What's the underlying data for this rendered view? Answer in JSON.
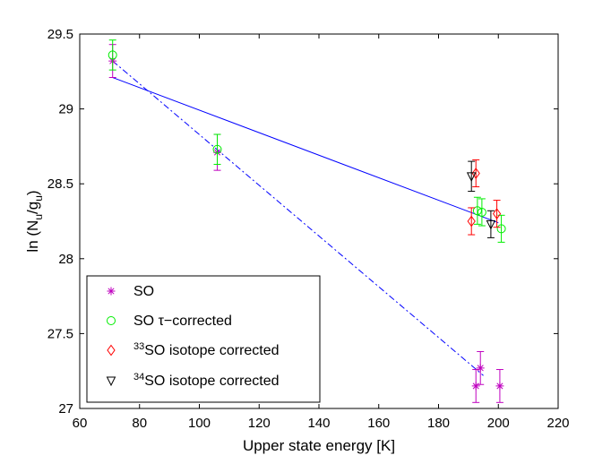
{
  "chart_data": {
    "type": "scatter",
    "title": "",
    "xlabel": "Upper state energy [K]",
    "ylabel_parts": {
      "prefix": "ln (N",
      "sub1": "u",
      "mid": "/g",
      "sub2": "u",
      "suffix": ")"
    },
    "xlim": [
      60,
      220
    ],
    "ylim": [
      27,
      29.5
    ],
    "xticks": [
      60,
      80,
      100,
      120,
      140,
      160,
      180,
      200,
      220
    ],
    "yticks": [
      27,
      27.5,
      28,
      28.5,
      29,
      29.5
    ],
    "ytick_labels": [
      "27",
      "27.5",
      "28",
      "28.5",
      "29",
      "29.5"
    ],
    "grid": false,
    "legend_position": "bottom-left",
    "series": [
      {
        "name": "SO",
        "label_text": "SO",
        "marker": "asterisk",
        "color": "#bf00bf",
        "points": [
          {
            "x": 71,
            "y": 29.32,
            "err": 0.11
          },
          {
            "x": 106,
            "y": 28.71,
            "err": 0.12
          },
          {
            "x": 192.5,
            "y": 27.15,
            "err": 0.11
          },
          {
            "x": 194,
            "y": 27.27,
            "err": 0.11
          },
          {
            "x": 200.5,
            "y": 27.15,
            "err": 0.11
          }
        ]
      },
      {
        "name": "SO tau-corrected",
        "label_text": "SO τ−corrected",
        "marker": "circle",
        "color": "#00ee00",
        "points": [
          {
            "x": 71,
            "y": 29.36,
            "err": 0.1
          },
          {
            "x": 106,
            "y": 28.73,
            "err": 0.1
          },
          {
            "x": 193,
            "y": 28.32,
            "err": 0.09
          },
          {
            "x": 194.5,
            "y": 28.31,
            "err": 0.09
          },
          {
            "x": 201,
            "y": 28.2,
            "err": 0.09
          }
        ]
      },
      {
        "name": "33SO isotope corrected",
        "label_sup": "33",
        "label_text": "SO isotope corrected",
        "marker": "diamond",
        "color": "#ff0000",
        "points": [
          {
            "x": 191,
            "y": 28.25,
            "err": 0.09
          },
          {
            "x": 192.5,
            "y": 28.57,
            "err": 0.09
          },
          {
            "x": 199.5,
            "y": 28.3,
            "err": 0.09
          }
        ]
      },
      {
        "name": "34SO isotope corrected",
        "label_sup": "34",
        "label_text": "SO isotope corrected",
        "marker": "triangle-down",
        "color": "#000000",
        "points": [
          {
            "x": 191,
            "y": 28.55,
            "err": 0.1
          },
          {
            "x": 197.5,
            "y": 28.23,
            "err": 0.09
          }
        ]
      }
    ],
    "fit_lines": [
      {
        "name": "fit-solid",
        "style": "solid",
        "color": "#0000ff",
        "from": [
          71,
          29.21
        ],
        "to": [
          200,
          28.24
        ]
      },
      {
        "name": "fit-dashdot",
        "style": "dash-dot",
        "color": "#0000ff",
        "from": [
          71,
          29.32
        ],
        "to": [
          195,
          27.22
        ]
      }
    ]
  }
}
